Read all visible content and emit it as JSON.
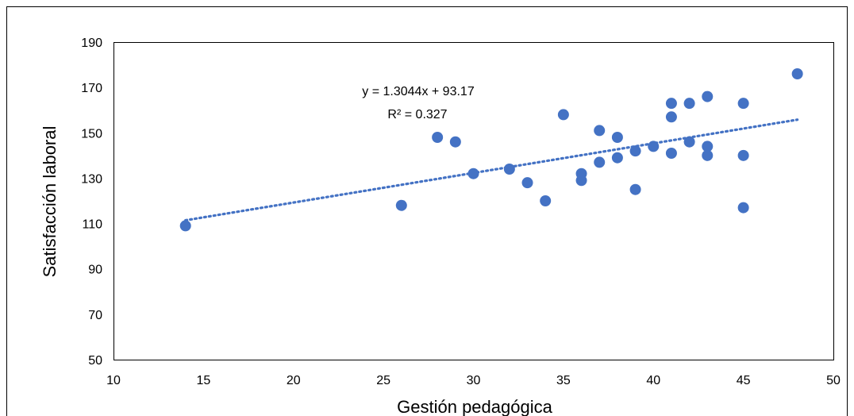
{
  "chart_data": {
    "type": "scatter",
    "xlabel": "Gestión pedagógica",
    "ylabel": "Satisfacción laboral",
    "xlim": [
      10,
      50
    ],
    "ylim": [
      50,
      190
    ],
    "xticks": [
      "10",
      "15",
      "20",
      "25",
      "30",
      "35",
      "40",
      "45",
      "50"
    ],
    "yticks": [
      "50",
      "70",
      "90",
      "110",
      "130",
      "150",
      "170",
      "190"
    ],
    "grid": false,
    "legend": "none",
    "points": [
      {
        "x": 14,
        "y": 109
      },
      {
        "x": 26,
        "y": 118
      },
      {
        "x": 28,
        "y": 148
      },
      {
        "x": 29,
        "y": 146
      },
      {
        "x": 30,
        "y": 132
      },
      {
        "x": 32,
        "y": 134
      },
      {
        "x": 33,
        "y": 128
      },
      {
        "x": 34,
        "y": 120
      },
      {
        "x": 35,
        "y": 158
      },
      {
        "x": 36,
        "y": 132
      },
      {
        "x": 36,
        "y": 129
      },
      {
        "x": 37,
        "y": 151
      },
      {
        "x": 37,
        "y": 137
      },
      {
        "x": 38,
        "y": 148
      },
      {
        "x": 38,
        "y": 139
      },
      {
        "x": 39,
        "y": 142
      },
      {
        "x": 39,
        "y": 125
      },
      {
        "x": 40,
        "y": 144
      },
      {
        "x": 41,
        "y": 163
      },
      {
        "x": 41,
        "y": 157
      },
      {
        "x": 41,
        "y": 141
      },
      {
        "x": 42,
        "y": 163
      },
      {
        "x": 42,
        "y": 146
      },
      {
        "x": 43,
        "y": 166
      },
      {
        "x": 43,
        "y": 144
      },
      {
        "x": 43,
        "y": 140
      },
      {
        "x": 45,
        "y": 163
      },
      {
        "x": 45,
        "y": 140
      },
      {
        "x": 45,
        "y": 117
      },
      {
        "x": 48,
        "y": 176
      }
    ],
    "trendline": {
      "slope": 1.3044,
      "intercept": 93.17,
      "x_start": 14,
      "x_end": 48,
      "style": "dotted"
    },
    "annotations": {
      "equation": "y = 1.3044x + 93.17",
      "r_squared": "R² = 0.327"
    },
    "colors": {
      "points": "#4472C4",
      "trendline": "#4472C4",
      "frame": "#000000"
    }
  }
}
